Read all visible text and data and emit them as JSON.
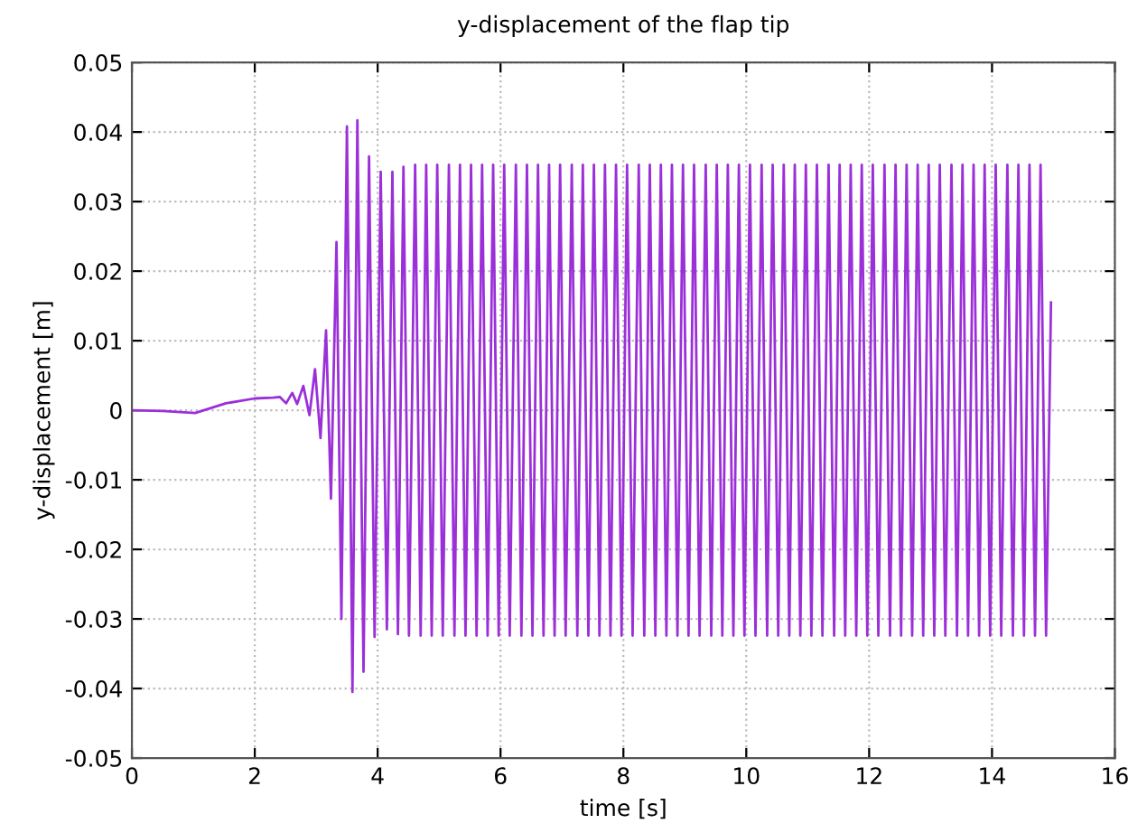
{
  "chart_data": {
    "type": "line",
    "title": "y-displacement of the flap tip",
    "xlabel": "time [s]",
    "ylabel": "y-displacement [m]",
    "xlim": [
      0,
      16
    ],
    "ylim": [
      -0.05,
      0.05
    ],
    "xticks": [
      0,
      2,
      4,
      6,
      8,
      10,
      12,
      14,
      16
    ],
    "yticks": [
      -0.05,
      -0.04,
      -0.03,
      -0.02,
      -0.01,
      0,
      0.01,
      0.02,
      0.03,
      0.04,
      0.05
    ],
    "grid": true,
    "marker": "none",
    "line_style": "solid",
    "series": [
      {
        "color": "#9b30d9",
        "x": [
          0,
          0.5,
          1.03,
          1.53,
          2.0,
          2.3,
          2.41,
          2.51,
          2.61,
          2.69,
          2.79,
          2.89,
          2.98,
          3.07,
          3.16,
          3.24,
          3.33,
          3.41,
          3.5,
          3.59,
          3.67,
          3.77,
          3.86,
          3.95,
          4.05,
          4.15,
          4.24,
          4.33,
          4.42,
          4.51,
          4.61,
          4.7,
          4.79,
          4.88,
          4.97,
          5.06,
          5.16,
          5.25,
          5.34,
          5.43,
          5.52,
          5.61,
          5.7,
          5.79,
          5.88,
          5.97,
          6.06,
          6.15,
          6.25,
          6.34,
          6.43,
          6.52,
          6.61,
          6.7,
          6.79,
          6.88,
          6.97,
          7.06,
          7.16,
          7.25,
          7.34,
          7.43,
          7.52,
          7.61,
          7.7,
          7.79,
          7.88,
          7.97,
          8.06,
          8.15,
          8.25,
          8.34,
          8.43,
          8.52,
          8.61,
          8.7,
          8.79,
          8.88,
          8.97,
          9.06,
          9.15,
          9.24,
          9.34,
          9.43,
          9.52,
          9.61,
          9.7,
          9.79,
          9.88,
          9.97,
          10.06,
          10.15,
          10.25,
          10.34,
          10.43,
          10.52,
          10.61,
          10.7,
          10.79,
          10.88,
          10.97,
          11.06,
          11.15,
          11.24,
          11.34,
          11.43,
          11.52,
          11.61,
          11.7,
          11.79,
          11.88,
          11.97,
          12.06,
          12.15,
          12.25,
          12.34,
          12.43,
          12.52,
          12.61,
          12.7,
          12.79,
          12.88,
          12.97,
          13.06,
          13.15,
          13.24,
          13.34,
          13.43,
          13.52,
          13.61,
          13.7,
          13.79,
          13.88,
          13.97,
          14.06,
          14.15,
          14.25,
          14.34,
          14.43,
          14.52,
          14.61,
          14.7,
          14.79,
          14.88,
          14.96
        ],
        "values": [
          0,
          -0.0001,
          -0.0004,
          0.001,
          0.0017,
          0.0018,
          0.0019,
          0.001,
          0.0025,
          0.0009,
          0.0035,
          -0.0007,
          0.0059,
          -0.004,
          0.0115,
          -0.0127,
          0.0242,
          -0.03,
          0.0408,
          -0.0405,
          0.0417,
          -0.0376,
          0.0365,
          -0.0326,
          0.0343,
          -0.0315,
          0.0343,
          -0.0322,
          0.035,
          -0.0324,
          0.0353,
          -0.0324,
          0.0353,
          -0.0324,
          0.0353,
          -0.0324,
          0.0353,
          -0.0324,
          0.0353,
          -0.0324,
          0.0353,
          -0.0324,
          0.0353,
          -0.0324,
          0.0353,
          -0.0324,
          0.0353,
          -0.0324,
          0.0353,
          -0.0324,
          0.0353,
          -0.0324,
          0.0353,
          -0.0324,
          0.0353,
          -0.0324,
          0.0353,
          -0.0324,
          0.0353,
          -0.0324,
          0.0353,
          -0.0324,
          0.0353,
          -0.0324,
          0.0353,
          -0.0324,
          0.0353,
          -0.0324,
          0.0353,
          -0.0324,
          0.0353,
          -0.0324,
          0.0353,
          -0.0324,
          0.0353,
          -0.0324,
          0.0353,
          -0.0324,
          0.0353,
          -0.0324,
          0.0353,
          -0.0324,
          0.0353,
          -0.0324,
          0.0353,
          -0.0324,
          0.0353,
          -0.0324,
          0.0353,
          -0.0324,
          0.0353,
          -0.0324,
          0.0353,
          -0.0324,
          0.0353,
          -0.0324,
          0.0353,
          -0.0324,
          0.0353,
          -0.0324,
          0.0353,
          -0.0324,
          0.0353,
          -0.0324,
          0.0353,
          -0.0324,
          0.0353,
          -0.0324,
          0.0353,
          -0.0324,
          0.0353,
          -0.0324,
          0.0353,
          -0.0324,
          0.0353,
          -0.0324,
          0.0353,
          -0.0324,
          0.0353,
          -0.0324,
          0.0353,
          -0.0324,
          0.0353,
          -0.0324,
          0.0353,
          -0.0324,
          0.0353,
          -0.0324,
          0.0353,
          -0.0324,
          0.0353,
          -0.0324,
          0.0353,
          -0.0324,
          0.0353,
          -0.0324,
          0.0353,
          -0.0324,
          0.0353,
          -0.0324,
          0.0353,
          -0.0324,
          0.0353,
          -0.0324,
          0.0155
        ]
      }
    ]
  }
}
